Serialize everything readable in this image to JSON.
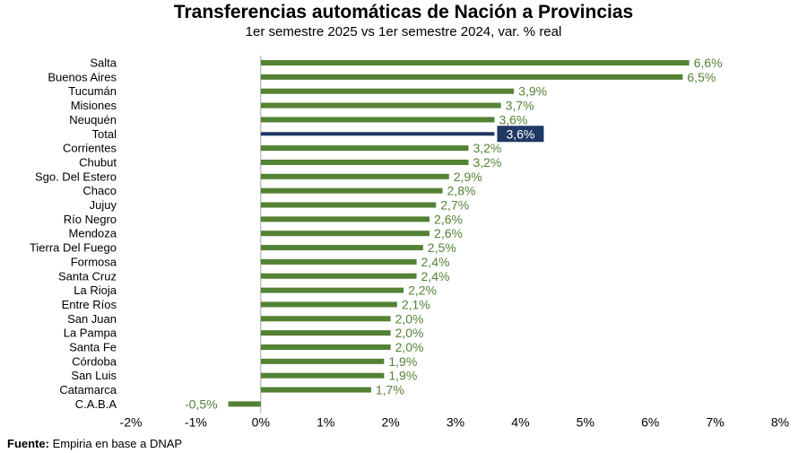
{
  "chart_data": {
    "type": "bar",
    "orientation": "horizontal",
    "title": "Transferencias automáticas de Nación a Provincias",
    "subtitle": "1er semestre 2025 vs 1er semestre 2024, var. % real",
    "xlabel": "",
    "ylabel": "",
    "xlim": [
      -2,
      8
    ],
    "x_ticks": [
      "-2%",
      "-1%",
      "0%",
      "1%",
      "2%",
      "3%",
      "4%",
      "5%",
      "6%",
      "7%",
      "8%"
    ],
    "grid": false,
    "legend": "none",
    "categories": [
      "Salta",
      "Buenos Aires",
      "Tucumán",
      "Misiones",
      "Neuquén",
      "Total",
      "Corrientes",
      "Chubut",
      "Sgo. Del Estero",
      "Chaco",
      "Jujuy",
      "Río Negro",
      "Mendoza",
      "Tierra Del Fuego",
      "Formosa",
      "Santa Cruz",
      "La Rioja",
      "Entre Ríos",
      "San Juan",
      "La Pampa",
      "Santa Fe",
      "Córdoba",
      "San Luis",
      "Catamarca",
      "C.A.B.A"
    ],
    "values": [
      6.6,
      6.5,
      3.9,
      3.7,
      3.6,
      3.6,
      3.2,
      3.2,
      2.9,
      2.8,
      2.7,
      2.6,
      2.6,
      2.5,
      2.4,
      2.4,
      2.2,
      2.1,
      2.0,
      2.0,
      2.0,
      1.9,
      1.9,
      1.7,
      -0.5
    ],
    "value_labels": [
      "6,6%",
      "6,5%",
      "3,9%",
      "3,7%",
      "3,6%",
      "3,6%",
      "3,2%",
      "3,2%",
      "2,9%",
      "2,8%",
      "2,7%",
      "2,6%",
      "2,6%",
      "2,5%",
      "2,4%",
      "2,4%",
      "2,2%",
      "2,1%",
      "2,0%",
      "2,0%",
      "2,0%",
      "1,9%",
      "1,9%",
      "1,7%",
      "-0,5%"
    ],
    "highlight_category": "Total",
    "colors": {
      "bar": "#548235",
      "highlight_bar": "#1f3864",
      "label": "#548235",
      "highlight_label_bg": "#1f3864",
      "highlight_label_text": "#ffffff",
      "axis": "#a6a6a6"
    }
  },
  "source": {
    "label": "Fuente:",
    "text": " Empiria en base a DNAP"
  }
}
